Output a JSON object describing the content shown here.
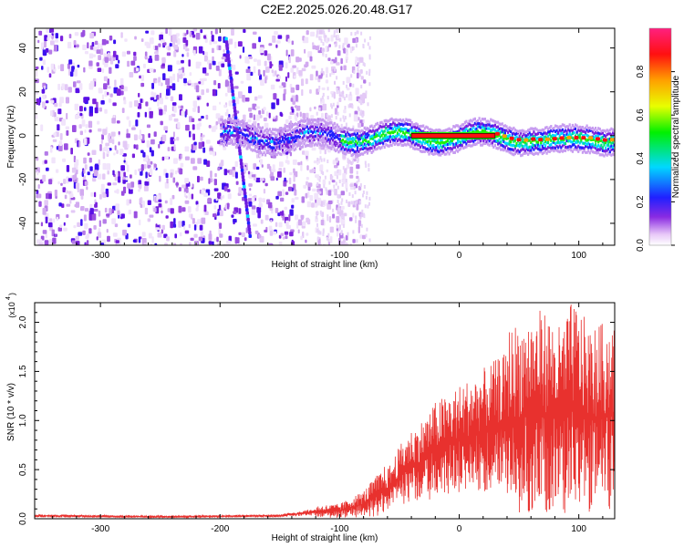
{
  "title": "C2E2.2025.026.20.48.G17",
  "chart_data": [
    {
      "type": "heatmap",
      "xlabel": "Height of straight line (km)",
      "ylabel": "Frequency (Hz)",
      "xlim": [
        -355,
        130
      ],
      "ylim": [
        -50,
        49
      ],
      "xticks": [
        -300,
        -200,
        -100,
        0,
        100
      ],
      "yticks": [
        -40,
        -20,
        0,
        20,
        40
      ],
      "colorbar": {
        "label": "Normalized spectral amplitude",
        "range": [
          0,
          1
        ],
        "ticks": [
          "0.0",
          "0.2",
          "0.4",
          "0.6",
          "0.8"
        ],
        "colormap": "rainbow (white→violet→blue→cyan→green→yellow→orange→red→pink)"
      },
      "features": {
        "noise_region_x": [
          -355,
          -100
        ],
        "signal_band_freq": 0,
        "signal_band_x": [
          -200,
          130
        ],
        "saturated_segment_x": [
          -40,
          30
        ],
        "slanted_trace": {
          "from": [
            -195,
            45
          ],
          "to": [
            -175,
            -45
          ]
        }
      }
    },
    {
      "type": "line",
      "xlabel": "Height of straight line (km)",
      "ylabel": "SNR (10 * v/v)",
      "ylabel_exponent": "(x10",
      "exponent_power": "4",
      "xlim": [
        -355,
        130
      ],
      "ylim": [
        0,
        22000
      ],
      "xticks": [
        -300,
        -200,
        -100,
        0,
        100
      ],
      "yticks": [
        0,
        5000,
        10000,
        15000,
        20000
      ],
      "ytick_labels": [
        "0.0",
        "0.5",
        "1.0",
        "1.5",
        "2.0"
      ],
      "series": [
        {
          "color": "#e8312e",
          "x": [
            -355,
            -300,
            -250,
            -200,
            -150,
            -120,
            -100,
            -80,
            -60,
            -45,
            -30,
            -20,
            -10,
            0,
            20,
            40,
            55,
            70,
            85,
            95,
            110,
            130
          ],
          "y": [
            300,
            250,
            200,
            250,
            300,
            700,
            800,
            1500,
            3000,
            5000,
            6000,
            7000,
            7500,
            8000,
            9000,
            10000,
            10500,
            11000,
            10000,
            11500,
            10000,
            10500
          ]
        }
      ]
    }
  ]
}
